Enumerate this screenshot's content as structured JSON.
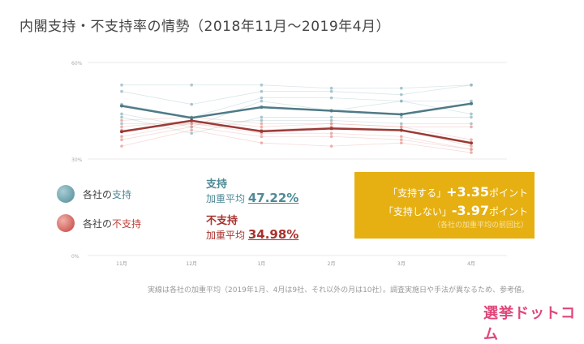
{
  "title": "内閣支持・不支持率の情勢（2018年11月〜2019年4月）",
  "legend": {
    "approve_prefix": "各社の",
    "approve": "支持",
    "disapprove_prefix": "各社の",
    "disapprove": "不支持"
  },
  "summary": {
    "approve_head": "支持",
    "approve_label": "加重平均",
    "approve_value": "47.22%",
    "disapprove_head": "不支持",
    "disapprove_label": "加重平均",
    "disapprove_value": "34.98%"
  },
  "highlight": {
    "line1": "「支持する」",
    "v1": "+3.35",
    "u1": "ポイント",
    "line2": "「支持しない」",
    "v2": "-3.97",
    "u2": "ポイント",
    "note": "（各社の加重平均の前回比）"
  },
  "footnote": "実線は各社の加重平均（2019年1月、4月は9社、それ以外の月は10社）。調査実施日や手法が異なるため、参考値。",
  "logo": "選挙ドットコム",
  "colors": {
    "approve": "#4f7a86",
    "disapprove": "#9b3a36",
    "approve_light": "#8fb6c0",
    "disapprove_light": "#e59a94",
    "highlight": "#e6b012"
  },
  "chart_data": {
    "type": "line",
    "categories": [
      "11月",
      "12月",
      "1月",
      "2月",
      "3月",
      "4月"
    ],
    "yticks": [
      "0%",
      "30%",
      "60%"
    ],
    "ylim": [
      0,
      60
    ],
    "series": [
      {
        "name": "支持 加重平均",
        "values": [
          46.5,
          42.8,
          46.1,
          45.0,
          43.87,
          47.22
        ]
      },
      {
        "name": "不支持 加重平均",
        "values": [
          38.5,
          41.9,
          38.6,
          39.5,
          38.95,
          34.98
        ]
      }
    ],
    "companies_approve": [
      [
        53,
        53,
        53,
        52,
        52,
        53
      ],
      [
        51,
        47,
        51,
        51,
        50,
        53
      ],
      [
        47,
        43,
        49,
        49,
        48,
        48
      ],
      [
        44,
        40,
        48,
        45,
        48,
        44
      ],
      [
        43,
        38,
        43,
        43,
        43,
        43
      ],
      [
        41,
        41,
        42,
        42,
        41,
        41
      ]
    ],
    "companies_disapprove": [
      [
        42,
        43,
        41,
        41,
        40,
        40
      ],
      [
        40,
        42,
        40,
        41,
        40,
        36
      ],
      [
        39,
        41,
        39,
        40,
        39,
        34
      ],
      [
        37,
        41,
        38,
        38,
        37,
        33
      ],
      [
        36,
        40,
        37,
        37,
        36,
        33
      ],
      [
        34,
        39,
        35,
        34,
        35,
        32
      ]
    ]
  }
}
